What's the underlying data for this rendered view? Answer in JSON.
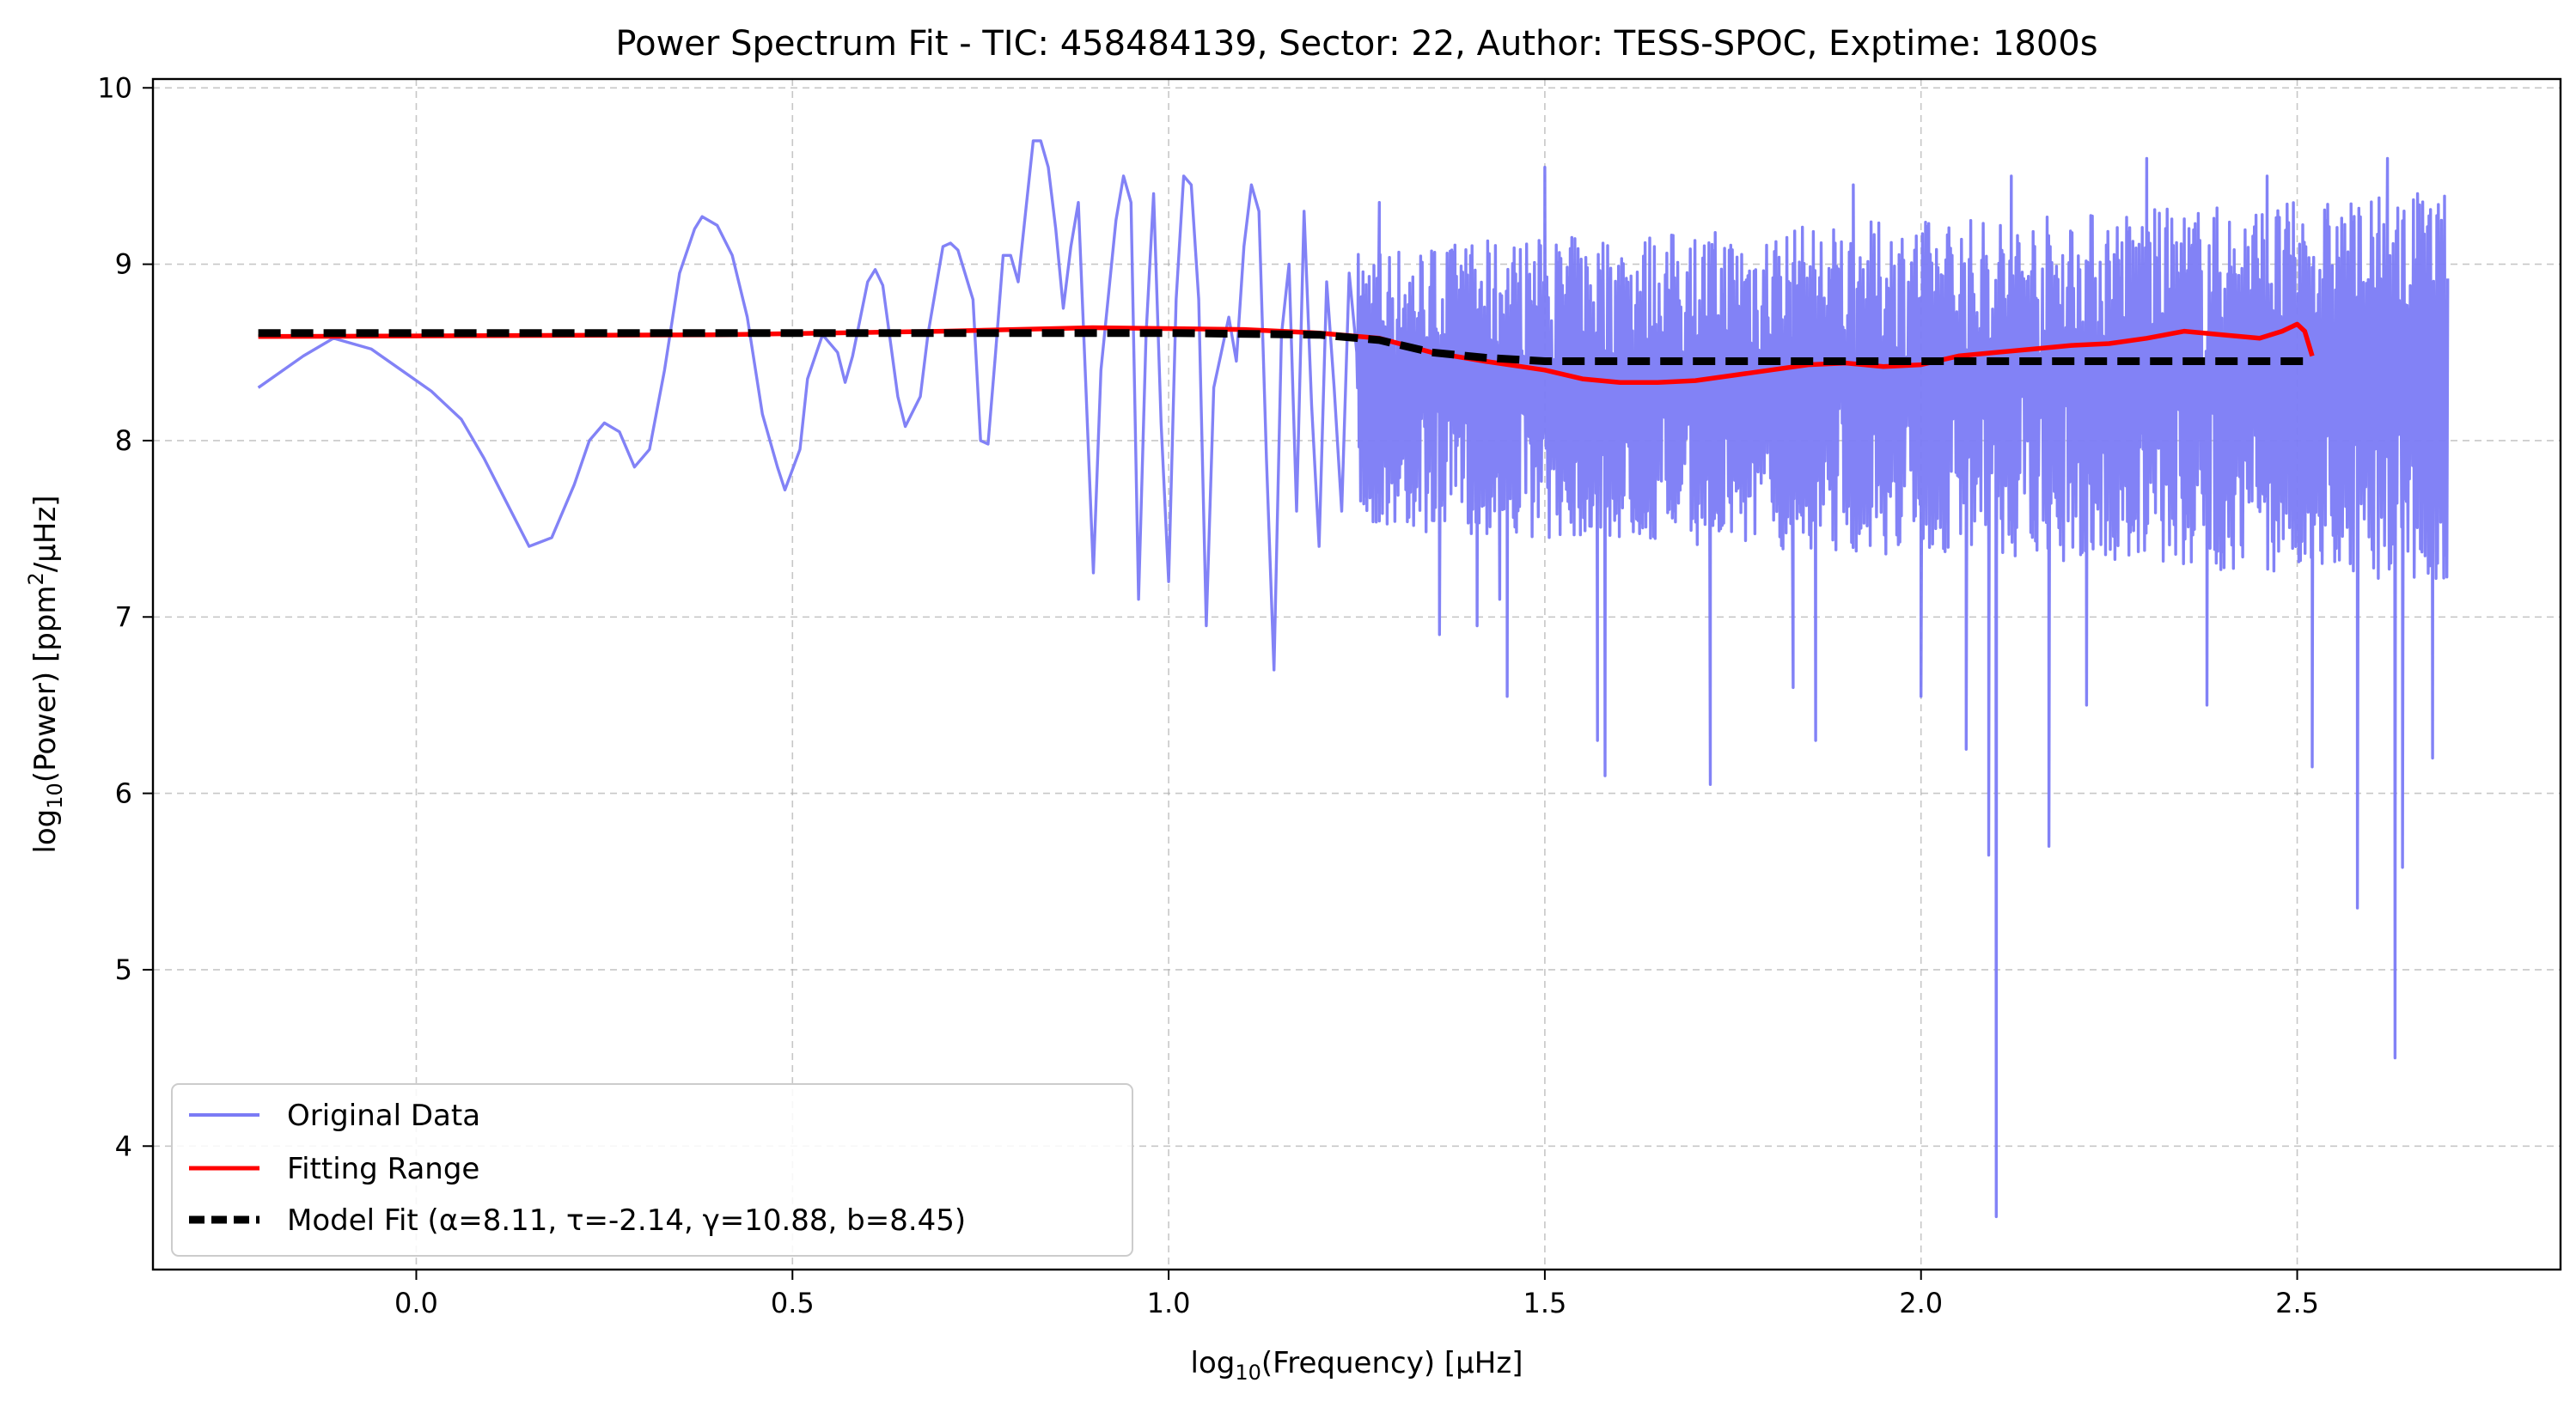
{
  "chart_data": {
    "type": "line",
    "title": "Power Spectrum Fit - TIC: 458484139, Sector: 22, Author: TESS-SPOC, Exptime: 1800s",
    "xlabel": {
      "prefix": "log",
      "sub": "10",
      "suffix": "(Frequency) [μHz]"
    },
    "ylabel": {
      "prefix": "log",
      "sub": "10",
      "middle": "(Power) [ppm",
      "sup": "2",
      "suffix": "/μHz]"
    },
    "xlim": [
      -0.35,
      2.85
    ],
    "ylim": [
      3.3,
      10.05
    ],
    "xticks": [
      0.0,
      0.5,
      1.0,
      1.5,
      2.0,
      2.5
    ],
    "xtick_labels": [
      "0.0",
      "0.5",
      "1.0",
      "1.5",
      "2.0",
      "2.5"
    ],
    "yticks": [
      4,
      5,
      6,
      7,
      8,
      9,
      10
    ],
    "ytick_labels": [
      "4",
      "5",
      "6",
      "7",
      "8",
      "9",
      "10"
    ],
    "grid": true,
    "legend_position": "lower-left",
    "series": [
      {
        "name": "Original Data",
        "color": "#7b7bf5",
        "style": "solid",
        "low_freq_points": [
          [
            -0.21,
            8.3
          ],
          [
            -0.15,
            8.48
          ],
          [
            -0.11,
            8.58
          ],
          [
            -0.06,
            8.52
          ],
          [
            -0.02,
            8.4
          ],
          [
            0.02,
            8.28
          ],
          [
            0.06,
            8.12
          ],
          [
            0.09,
            7.9
          ],
          [
            0.12,
            7.65
          ],
          [
            0.15,
            7.4
          ],
          [
            0.18,
            7.45
          ],
          [
            0.21,
            7.75
          ],
          [
            0.23,
            8.0
          ],
          [
            0.25,
            8.1
          ],
          [
            0.27,
            8.05
          ],
          [
            0.29,
            7.85
          ],
          [
            0.31,
            7.95
          ],
          [
            0.33,
            8.4
          ],
          [
            0.35,
            8.95
          ],
          [
            0.37,
            9.2
          ],
          [
            0.38,
            9.27
          ],
          [
            0.4,
            9.22
          ],
          [
            0.42,
            9.05
          ],
          [
            0.44,
            8.7
          ],
          [
            0.46,
            8.15
          ],
          [
            0.48,
            7.85
          ],
          [
            0.49,
            7.72
          ],
          [
            0.51,
            7.95
          ],
          [
            0.52,
            8.35
          ],
          [
            0.54,
            8.6
          ],
          [
            0.56,
            8.5
          ],
          [
            0.57,
            8.33
          ],
          [
            0.58,
            8.48
          ],
          [
            0.6,
            8.9
          ],
          [
            0.61,
            8.97
          ],
          [
            0.62,
            8.88
          ],
          [
            0.64,
            8.25
          ],
          [
            0.65,
            8.08
          ],
          [
            0.67,
            8.25
          ],
          [
            0.68,
            8.6
          ],
          [
            0.7,
            9.1
          ],
          [
            0.71,
            9.12
          ],
          [
            0.72,
            9.08
          ],
          [
            0.74,
            8.8
          ],
          [
            0.75,
            8.0
          ],
          [
            0.76,
            7.98
          ],
          [
            0.77,
            8.5
          ],
          [
            0.78,
            9.05
          ],
          [
            0.79,
            9.05
          ],
          [
            0.8,
            8.9
          ],
          [
            0.81,
            9.3
          ],
          [
            0.82,
            9.7
          ],
          [
            0.83,
            9.7
          ],
          [
            0.84,
            9.55
          ],
          [
            0.85,
            9.2
          ],
          [
            0.86,
            8.75
          ],
          [
            0.87,
            9.1
          ],
          [
            0.88,
            9.35
          ],
          [
            0.89,
            8.3
          ],
          [
            0.9,
            7.25
          ],
          [
            0.91,
            8.4
          ],
          [
            0.93,
            9.25
          ],
          [
            0.94,
            9.5
          ],
          [
            0.95,
            9.35
          ],
          [
            0.96,
            7.1
          ],
          [
            0.97,
            8.6
          ],
          [
            0.98,
            9.4
          ],
          [
            0.99,
            8.1
          ],
          [
            1.0,
            7.2
          ],
          [
            1.01,
            8.8
          ],
          [
            1.02,
            9.5
          ],
          [
            1.03,
            9.45
          ],
          [
            1.04,
            8.8
          ],
          [
            1.05,
            6.95
          ],
          [
            1.06,
            8.3
          ],
          [
            1.07,
            8.5
          ],
          [
            1.08,
            8.7
          ],
          [
            1.09,
            8.45
          ],
          [
            1.1,
            9.1
          ],
          [
            1.11,
            9.45
          ],
          [
            1.12,
            9.3
          ],
          [
            1.13,
            7.9
          ],
          [
            1.14,
            6.7
          ],
          [
            1.15,
            8.6
          ],
          [
            1.16,
            9.0
          ],
          [
            1.17,
            7.6
          ],
          [
            1.18,
            9.3
          ],
          [
            1.19,
            8.2
          ],
          [
            1.2,
            7.4
          ],
          [
            1.21,
            8.9
          ],
          [
            1.22,
            8.3
          ],
          [
            1.23,
            7.6
          ],
          [
            1.24,
            8.95
          ],
          [
            1.25,
            8.5
          ]
        ],
        "dense_start": 1.25,
        "dense_end": 2.7,
        "dense_center": 8.3,
        "dense_spread_start": 0.8,
        "dense_spread_end": 1.1,
        "dense_spikes": [
          [
            1.28,
            9.35
          ],
          [
            1.36,
            6.9
          ],
          [
            1.41,
            6.95
          ],
          [
            1.44,
            7.1
          ],
          [
            1.45,
            6.55
          ],
          [
            1.5,
            9.55
          ],
          [
            1.57,
            6.3
          ],
          [
            1.58,
            6.1
          ],
          [
            1.72,
            6.05
          ],
          [
            1.83,
            6.6
          ],
          [
            1.86,
            6.3
          ],
          [
            1.91,
            9.45
          ],
          [
            2.0,
            6.55
          ],
          [
            2.06,
            6.25
          ],
          [
            2.09,
            5.65
          ],
          [
            2.1,
            3.6
          ],
          [
            2.12,
            9.5
          ],
          [
            2.17,
            5.7
          ],
          [
            2.22,
            6.5
          ],
          [
            2.3,
            9.6
          ],
          [
            2.38,
            6.5
          ],
          [
            2.46,
            9.5
          ],
          [
            2.52,
            6.15
          ],
          [
            2.58,
            5.35
          ],
          [
            2.62,
            9.6
          ],
          [
            2.63,
            4.5
          ],
          [
            2.64,
            5.58
          ],
          [
            2.66,
            9.4
          ],
          [
            2.68,
            6.2
          ],
          [
            2.7,
            8.85
          ]
        ]
      },
      {
        "name": "Fitting Range",
        "color": "#ff0000",
        "style": "solid",
        "points": [
          [
            -0.21,
            8.59
          ],
          [
            0.4,
            8.6
          ],
          [
            0.7,
            8.62
          ],
          [
            0.9,
            8.64
          ],
          [
            1.1,
            8.63
          ],
          [
            1.2,
            8.61
          ],
          [
            1.28,
            8.58
          ],
          [
            1.35,
            8.5
          ],
          [
            1.42,
            8.45
          ],
          [
            1.5,
            8.4
          ],
          [
            1.55,
            8.35
          ],
          [
            1.6,
            8.33
          ],
          [
            1.65,
            8.33
          ],
          [
            1.7,
            8.34
          ],
          [
            1.75,
            8.37
          ],
          [
            1.8,
            8.4
          ],
          [
            1.85,
            8.43
          ],
          [
            1.9,
            8.44
          ],
          [
            1.95,
            8.42
          ],
          [
            2.0,
            8.43
          ],
          [
            2.05,
            8.48
          ],
          [
            2.1,
            8.5
          ],
          [
            2.15,
            8.52
          ],
          [
            2.2,
            8.54
          ],
          [
            2.25,
            8.55
          ],
          [
            2.3,
            8.58
          ],
          [
            2.35,
            8.62
          ],
          [
            2.4,
            8.6
          ],
          [
            2.45,
            8.58
          ],
          [
            2.48,
            8.62
          ],
          [
            2.5,
            8.66
          ],
          [
            2.51,
            8.62
          ],
          [
            2.52,
            8.48
          ]
        ]
      },
      {
        "name": "Model Fit (α=8.11, τ=-2.14, γ=10.88, b=8.45)",
        "color": "#000000",
        "style": "dashed",
        "points": [
          [
            -0.21,
            8.61
          ],
          [
            1.0,
            8.61
          ],
          [
            1.2,
            8.6
          ],
          [
            1.28,
            8.57
          ],
          [
            1.35,
            8.5
          ],
          [
            1.42,
            8.47
          ],
          [
            1.5,
            8.45
          ],
          [
            1.6,
            8.45
          ],
          [
            2.0,
            8.45
          ],
          [
            2.52,
            8.45
          ]
        ]
      }
    ]
  }
}
